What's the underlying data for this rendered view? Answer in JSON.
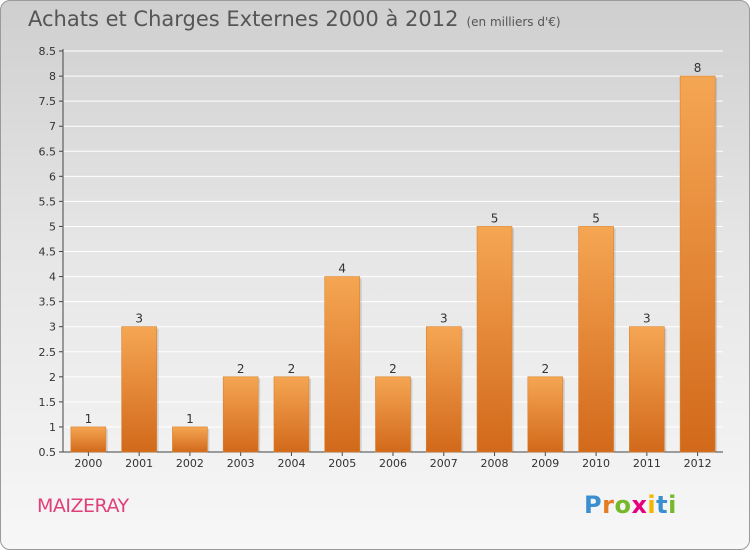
{
  "title": "Achats et Charges Externes 2000 à 2012",
  "unit": "(en milliers d'€)",
  "commune": "MAIZERAY",
  "logo": {
    "text": "Proxiti",
    "letters": [
      {
        "ch": "P",
        "color": "#3a8fd0"
      },
      {
        "ch": "r",
        "color": "#e57c24"
      },
      {
        "ch": "o",
        "color": "#76b82a"
      },
      {
        "ch": "x",
        "color": "#e5007e"
      },
      {
        "ch": "i",
        "color": "#f2b700"
      },
      {
        "ch": "t",
        "color": "#3a8fd0"
      },
      {
        "ch": "i",
        "color": "#76b82a"
      }
    ]
  },
  "colors": {
    "bar_top": "#f5a653",
    "bar_bottom": "#d2691b",
    "commune": "#e0407a",
    "grid": "#ffffff"
  },
  "chart_data": {
    "type": "bar",
    "title": "Achats et Charges Externes 2000 à 2012",
    "subtitle": "(en milliers d'€)",
    "categories": [
      "2000",
      "2001",
      "2002",
      "2003",
      "2004",
      "2005",
      "2006",
      "2007",
      "2008",
      "2009",
      "2010",
      "2011",
      "2012"
    ],
    "values": [
      1,
      3,
      1,
      2,
      2,
      4,
      2,
      3,
      5,
      2,
      5,
      3,
      8
    ],
    "data_labels": [
      "1",
      "3",
      "1",
      "2",
      "2",
      "4",
      "2",
      "3",
      "5",
      "2",
      "5",
      "3",
      "8"
    ],
    "ylim": [
      0.5,
      8.5
    ],
    "yticks": [
      "0.5",
      "1",
      "1.5",
      "2",
      "2.5",
      "3",
      "3.5",
      "4",
      "4.5",
      "5",
      "5.5",
      "6",
      "6.5",
      "7",
      "7.5",
      "8",
      "8.5"
    ],
    "grid": true,
    "legend": "none",
    "xlabel": "",
    "ylabel": ""
  }
}
